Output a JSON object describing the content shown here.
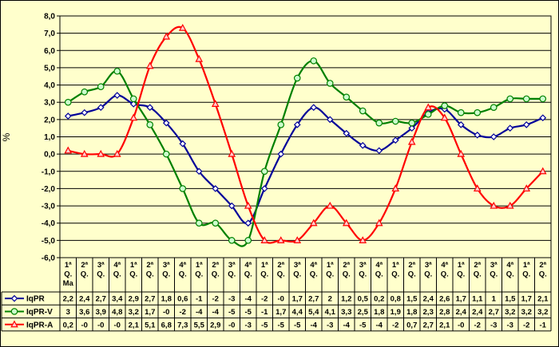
{
  "chart_data": {
    "type": "line",
    "ylabel": "%",
    "ylim": [
      -6,
      8
    ],
    "ytick_step": 1,
    "y_tick_labels": [
      "8,0",
      "7,0",
      "6,0",
      "5,0",
      "4,0",
      "3,0",
      "2,0",
      "1,0",
      "0,0",
      "-1,0",
      "-2,0",
      "-3,0",
      "-4,0",
      "-5,0",
      "-6,0"
    ],
    "grid": true,
    "categories": [
      [
        "1ª",
        "Q.",
        "Ma"
      ],
      [
        "2ª",
        "Q."
      ],
      [
        "3ª",
        "Q."
      ],
      [
        "4ª",
        "Q."
      ],
      [
        "1ª",
        "Q."
      ],
      [
        "2ª",
        "Q."
      ],
      [
        "3ª",
        "Q."
      ],
      [
        "4ª",
        "Q."
      ],
      [
        "1ª",
        "Q."
      ],
      [
        "2ª",
        "Q."
      ],
      [
        "3ª",
        "Q."
      ],
      [
        "4ª",
        "Q."
      ],
      [
        "1ª",
        "Q."
      ],
      [
        "2ª",
        "Q."
      ],
      [
        "3ª",
        "Q."
      ],
      [
        "4ª",
        "Q."
      ],
      [
        "1ª",
        "Q."
      ],
      [
        "2ª",
        "Q."
      ],
      [
        "3ª",
        "Q."
      ],
      [
        "4ª",
        "Q."
      ],
      [
        "1ª",
        "Q."
      ],
      [
        "2ª",
        "Q."
      ],
      [
        "3ª",
        "Q."
      ],
      [
        "4ª",
        "Q."
      ],
      [
        "1ª",
        "Q."
      ],
      [
        "2ª",
        "Q."
      ],
      [
        "3ª",
        "Q."
      ],
      [
        "4ª",
        "Q."
      ],
      [
        "1ª",
        "Q."
      ],
      [
        "2ª",
        "Q."
      ]
    ],
    "series": [
      {
        "name": "IqPR",
        "color": "#000099",
        "marker": "diamond",
        "values": [
          2.2,
          2.4,
          2.7,
          3.4,
          2.9,
          2.7,
          1.8,
          0.6,
          -1,
          -2,
          -3,
          -4,
          -2,
          0,
          1.7,
          2.7,
          2,
          1.2,
          0.5,
          0.2,
          0.8,
          1.5,
          2.4,
          2.6,
          1.7,
          1.1,
          1,
          1.5,
          1.7,
          2.1
        ],
        "labels": [
          "2,2",
          "2,4",
          "2,7",
          "3,4",
          "2,9",
          "2,7",
          "1,8",
          "0,6",
          "-1",
          "-2",
          "-3",
          "-4",
          "-2",
          "-0",
          "1,7",
          "2,7",
          "2",
          "1,2",
          "0,5",
          "0,2",
          "0,8",
          "1,5",
          "2,4",
          "2,6",
          "1,7",
          "1,1",
          "1",
          "1,5",
          "1,7",
          "2,1"
        ]
      },
      {
        "name": "IqPR-V",
        "color": "#008000",
        "marker": "circle",
        "values": [
          3,
          3.6,
          3.9,
          4.8,
          3.2,
          1.7,
          0,
          -2,
          -4,
          -4,
          -5,
          -5,
          -1,
          1.7,
          4.4,
          5.4,
          4.1,
          3.3,
          2.5,
          1.8,
          1.9,
          1.8,
          2.3,
          2.8,
          2.4,
          2.4,
          2.7,
          3.2,
          3.2,
          3.2
        ],
        "labels": [
          "3",
          "3,6",
          "3,9",
          "4,8",
          "3,2",
          "1,7",
          "-0",
          "-2",
          "-4",
          "-4",
          "-5",
          "-5",
          "-1",
          "1,7",
          "4,4",
          "5,4",
          "4,1",
          "3,3",
          "2,5",
          "1,8",
          "1,9",
          "1,8",
          "2,3",
          "2,8",
          "2,4",
          "2,4",
          "2,7",
          "3,2",
          "3,2",
          "3,2"
        ]
      },
      {
        "name": "IqPR-A",
        "color": "#ff0000",
        "marker": "triangle",
        "values": [
          0.2,
          0,
          0,
          0,
          2.1,
          5.1,
          6.8,
          7.3,
          5.5,
          2.9,
          0,
          -3,
          -5,
          -5,
          -5,
          -4,
          -3,
          -4,
          -5,
          -4,
          -2,
          0.7,
          2.7,
          2.1,
          0,
          -2,
          -3,
          -3,
          -2,
          -1
        ],
        "labels": [
          "0,2",
          "-0",
          "-0",
          "-0",
          "2,1",
          "5,1",
          "6,8",
          "7,3",
          "5,5",
          "2,9",
          "-0",
          "-3",
          "-5",
          "-5",
          "-5",
          "-4",
          "-3",
          "-4",
          "-5",
          "-4",
          "-2",
          "0,7",
          "2,7",
          "2,1",
          "-0",
          "-2",
          "-3",
          "-3",
          "-2",
          "-1"
        ]
      }
    ]
  }
}
